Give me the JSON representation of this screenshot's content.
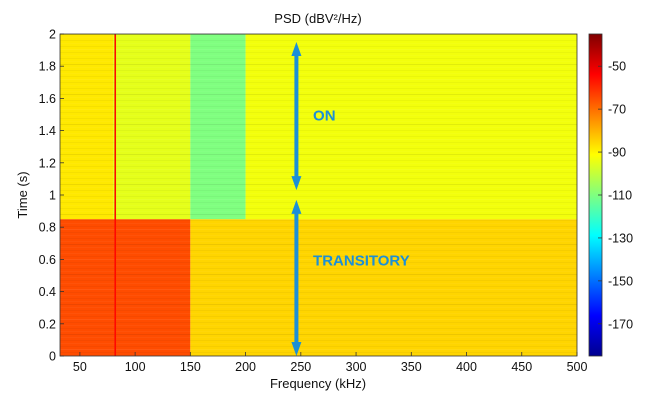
{
  "chart_data": {
    "type": "heatmap",
    "title": "PSD (dBV²/Hz)",
    "xlabel": "Frequency (kHz)",
    "ylabel": "Time (s)",
    "xlim": [
      32,
      500
    ],
    "ylim": [
      0,
      2
    ],
    "x_ticks": [
      "50",
      "100",
      "150",
      "200",
      "250",
      "300",
      "350",
      "400",
      "450",
      "500"
    ],
    "x_tick_values": [
      50,
      100,
      150,
      200,
      250,
      300,
      350,
      400,
      450,
      500
    ],
    "y_ticks": [
      "0",
      "0.2",
      "0.4",
      "0.6",
      "0.8",
      "1",
      "1.2",
      "1.4",
      "1.6",
      "1.8",
      "2"
    ],
    "y_tick_values": [
      0,
      0.2,
      0.4,
      0.6,
      0.8,
      1,
      1.2,
      1.4,
      1.6,
      1.8,
      2
    ],
    "colorbar": {
      "range": [
        -185,
        -35
      ],
      "ticks": [
        "-50",
        "-70",
        "-90",
        "-110",
        "-130",
        "-150",
        "-170"
      ],
      "tick_values": [
        -50,
        -70,
        -90,
        -110,
        -130,
        -150,
        -170
      ],
      "colormap": "jet"
    },
    "regions": [
      {
        "t_from": 0,
        "t_to": 0.85,
        "f_from": 32,
        "f_to": 150,
        "psd": -65
      },
      {
        "t_from": 0,
        "t_to": 0.85,
        "f_from": 150,
        "f_to": 500,
        "psd": -85
      },
      {
        "t_from": 0.85,
        "t_to": 2,
        "f_from": 32,
        "f_to": 80,
        "psd": -88
      },
      {
        "t_from": 0.85,
        "t_to": 2,
        "f_from": 80,
        "f_to": 150,
        "psd": -95
      },
      {
        "t_from": 0.85,
        "t_to": 2,
        "f_from": 150,
        "f_to": 200,
        "psd": -110
      },
      {
        "t_from": 0.85,
        "t_to": 2,
        "f_from": 200,
        "f_to": 500,
        "psd": -93
      }
    ],
    "lines": [
      {
        "f": 82,
        "t_from": 0,
        "t_to": 2,
        "psd": -55
      }
    ],
    "annotations": [
      {
        "text": "ON",
        "f": 252,
        "t": 1.5,
        "color": "#1c8fd6"
      },
      {
        "text": "TRANSITORY",
        "f": 252,
        "t": 0.6,
        "color": "#1c8fd6"
      }
    ],
    "arrows": [
      {
        "f": 246,
        "t_from": 1.03,
        "t_to": 1.95,
        "color": "#1c8fd6"
      },
      {
        "f": 246,
        "t_from": 0.0,
        "t_to": 0.97,
        "color": "#1c8fd6"
      }
    ]
  }
}
